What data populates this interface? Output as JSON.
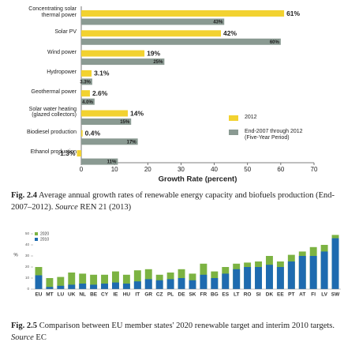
{
  "chart_data": [
    {
      "type": "hbar",
      "categories": [
        "Concentrating solar\nthermal power",
        "Solar PV",
        "Wind power",
        "Hydropower",
        "Geothermal power",
        "Solar water heating\n(glazed collectors)",
        "Biodiesel production",
        "Ethanol production"
      ],
      "series": [
        {
          "name": "2012",
          "color": "#f2d230",
          "values": [
            61,
            42,
            19,
            3.1,
            2.6,
            14,
            0.4,
            -1.3
          ],
          "value_labels": [
            "61%",
            "42%",
            "19%",
            "3.1%",
            "2.6%",
            "14%",
            "0.4%",
            "-1.3%"
          ]
        },
        {
          "name": "End-2007 through 2012\n(Five-Year Period)",
          "color": "#8a9a92",
          "values": [
            43,
            60,
            25,
            3.3,
            4.0,
            15,
            17,
            11
          ],
          "value_labels": [
            "43%",
            "60%",
            "25%",
            "3.3%",
            "4.0%",
            "15%",
            "17%",
            "11%"
          ]
        }
      ],
      "xlim": [
        0,
        70
      ],
      "xticks": [
        0,
        10,
        20,
        30,
        40,
        50,
        60,
        70
      ],
      "xlabel": "Growth Rate (percent)",
      "legend": "lower right"
    },
    {
      "type": "bar",
      "overlap": true,
      "categories": [
        "EU",
        "MT",
        "LU",
        "UK",
        "NL",
        "BE",
        "CY",
        "IE",
        "HU",
        "IT",
        "GR",
        "CZ",
        "PL",
        "DE",
        "SK",
        "FR",
        "BG",
        "ES",
        "LT",
        "RO",
        "SI",
        "DK",
        "EE",
        "PT",
        "AT",
        "FI",
        "LV",
        "SW"
      ],
      "series": [
        {
          "name": "2020",
          "color": "#7cb342",
          "values": [
            20,
            10,
            11,
            15,
            14,
            13,
            13,
            16,
            13,
            17,
            18,
            13,
            15,
            18,
            14,
            23,
            16,
            20,
            23,
            24,
            25,
            30,
            25,
            31,
            34,
            38,
            40,
            49
          ]
        },
        {
          "name": "2010",
          "color": "#1e6bb0",
          "values": [
            12.5,
            2,
            3,
            4,
            5,
            4,
            5,
            6,
            5,
            7,
            9,
            8,
            9,
            10,
            8,
            13,
            10,
            14,
            18,
            20,
            20,
            22,
            20,
            25,
            30,
            30,
            34,
            46
          ]
        }
      ],
      "ylim": [
        0,
        50
      ],
      "yticks": [
        0,
        10,
        20,
        30,
        40,
        50
      ],
      "ylabel": "%",
      "legend": "upper left"
    }
  ],
  "captions": [
    {
      "label": "Fig. 2.4",
      "text": "Average annual growth rates of renewable energy capacity and biofuels production (End-2007–2012).",
      "source_label": "Source",
      "source": "REN 21 (2013)"
    },
    {
      "label": "Fig. 2.5",
      "text": "Comparison between EU member states' 2020 renewable target and interim 2010 targets.",
      "source_label": "Source",
      "source": "EC"
    }
  ]
}
